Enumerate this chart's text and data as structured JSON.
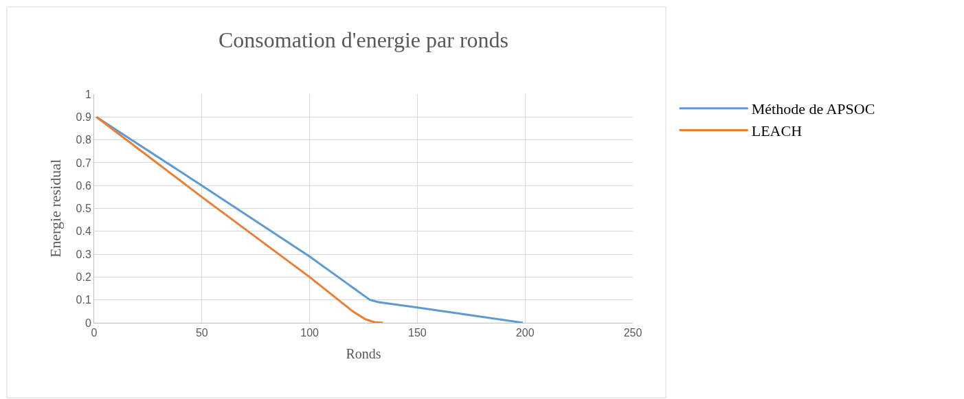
{
  "chart_data": {
    "type": "line",
    "title": "Consomation d'energie par ronds",
    "xlabel": "Ronds",
    "ylabel": "Energie residual",
    "xlim": [
      0,
      250
    ],
    "xticks": [
      0,
      50,
      100,
      150,
      200,
      250
    ],
    "ylim": [
      0,
      1
    ],
    "yticks": [
      0,
      0.1,
      0.2,
      0.3,
      0.4,
      0.5,
      0.6,
      0.7,
      0.8,
      0.9,
      1
    ],
    "grid": true,
    "legend": "right",
    "line_style": "solid",
    "marker": "none",
    "series": [
      {
        "name": "Méthode de APSOC",
        "color": "#5b9bd5",
        "x": [
          1,
          50,
          100,
          128,
          132,
          150,
          199
        ],
        "values": [
          0.9,
          0.6,
          0.29,
          0.1,
          0.09,
          0.067,
          0
        ]
      },
      {
        "name": "LEACH",
        "color": "#ed7d31",
        "x": [
          1,
          50,
          100,
          120,
          126,
          130,
          134
        ],
        "values": [
          0.9,
          0.55,
          0.2,
          0.05,
          0.015,
          0.003,
          0
        ]
      }
    ]
  }
}
